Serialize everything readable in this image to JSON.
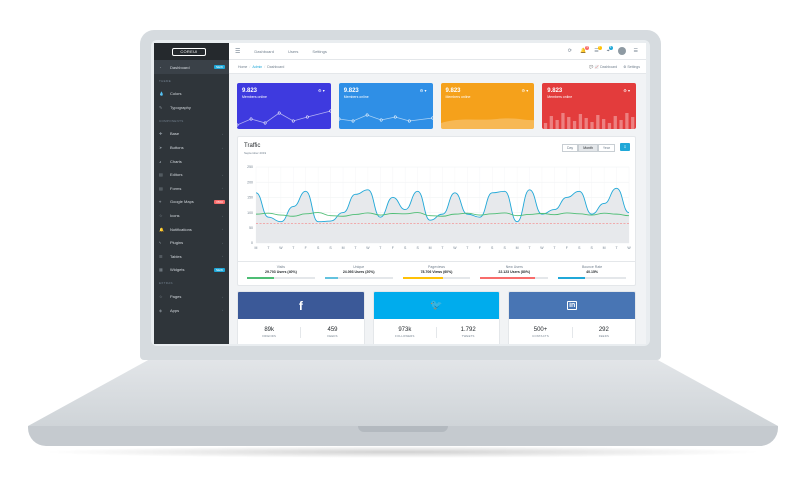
{
  "sidebar": {
    "brand": "COREUI",
    "items": [
      {
        "icon": "speedometer-icon",
        "label": "Dashboard",
        "badge": "NEW",
        "badge_color": "#20a8d8",
        "active": true
      },
      {
        "title": "THEME"
      },
      {
        "icon": "drop-icon",
        "label": "Colors"
      },
      {
        "icon": "pencil-icon",
        "label": "Typography"
      },
      {
        "title": "COMPONENTS"
      },
      {
        "icon": "puzzle-icon",
        "label": "Base",
        "caret": true
      },
      {
        "icon": "cursor-icon",
        "label": "Buttons",
        "caret": true
      },
      {
        "icon": "pie-chart-icon",
        "label": "Charts"
      },
      {
        "icon": "note-icon",
        "label": "Editors",
        "caret": true
      },
      {
        "icon": "note-icon",
        "label": "Forms",
        "caret": true
      },
      {
        "icon": "map-icon",
        "label": "Google Maps",
        "badge": "PRO",
        "badge_color": "#f86c6b"
      },
      {
        "icon": "star-icon",
        "label": "Icons",
        "caret": true
      },
      {
        "icon": "bell-icon",
        "label": "Notifications",
        "caret": true
      },
      {
        "icon": "energy-icon",
        "label": "Plugins",
        "caret": true
      },
      {
        "icon": "list-icon",
        "label": "Tables",
        "caret": true
      },
      {
        "icon": "calculator-icon",
        "label": "Widgets",
        "badge": "NEW",
        "badge_color": "#20a8d8"
      },
      {
        "title": "EXTRAS"
      },
      {
        "icon": "star-icon",
        "label": "Pages",
        "caret": true
      },
      {
        "icon": "layers-icon",
        "label": "Apps",
        "caret": true
      }
    ]
  },
  "topbar": {
    "nav": [
      "Dashboard",
      "Users",
      "Settings"
    ],
    "notif_counts": [
      "5",
      "7",
      "9"
    ]
  },
  "breadcrumb": {
    "items": [
      "Home",
      "Admin",
      "Dashboard"
    ],
    "right": [
      "Dashboard",
      "Settings"
    ]
  },
  "cards": [
    {
      "value": "9.823",
      "label": "Members online",
      "color": "#3e3adf",
      "spark": "line"
    },
    {
      "value": "9.823",
      "label": "Members online",
      "color": "#2f8fe6",
      "spark": "line"
    },
    {
      "value": "9.823",
      "label": "Members online",
      "color": "#f5a11b",
      "spark": "area"
    },
    {
      "value": "9.823",
      "label": "Members online",
      "color": "#e33c3c",
      "spark": "bar"
    }
  ],
  "traffic": {
    "title": "Traffic",
    "subtitle": "September 2019",
    "buttons": [
      "Day",
      "Month",
      "Year"
    ],
    "active_button": "Month"
  },
  "chart_data": {
    "type": "line",
    "ylim": [
      0,
      250
    ],
    "yticks": [
      "250",
      "200",
      "150",
      "100",
      "50",
      "0"
    ],
    "categories": [
      "M",
      "T",
      "W",
      "T",
      "F",
      "S",
      "S",
      "M",
      "T",
      "W",
      "T",
      "F",
      "S",
      "S",
      "M",
      "T",
      "W",
      "T",
      "F",
      "S",
      "S",
      "M",
      "T",
      "W",
      "T",
      "F",
      "S",
      "S",
      "M",
      "T",
      "W"
    ],
    "series": [
      {
        "color": "#20a8d8",
        "fill": "#e7e9ec",
        "values": [
          165,
          85,
          70,
          120,
          170,
          70,
          72,
          100,
          160,
          175,
          85,
          150,
          110,
          170,
          75,
          95,
          165,
          95,
          85,
          165,
          170,
          70,
          175,
          95,
          110,
          150,
          170,
          95,
          130,
          180,
          100
        ]
      },
      {
        "color": "#4dbd74",
        "values": [
          95,
          98,
          92,
          88,
          96,
          100,
          90,
          88,
          94,
          99,
          92,
          97,
          96,
          100,
          90,
          88,
          95,
          98,
          92,
          96,
          99,
          90,
          94,
          97,
          93,
          99,
          96,
          92,
          98,
          95,
          90
        ]
      },
      {
        "color": "#f86c6b",
        "dashed": true,
        "values": [
          65,
          65,
          65,
          65,
          65,
          65,
          65,
          65,
          65,
          65,
          65,
          65,
          65,
          65,
          65,
          65,
          65,
          65,
          65,
          65,
          65,
          65,
          65,
          65,
          65,
          65,
          65,
          65,
          65,
          65,
          65
        ]
      }
    ]
  },
  "stats": [
    {
      "label": "Visits",
      "value": "29.703 Users (40%)",
      "color": "#4dbd74",
      "progress": 0.4
    },
    {
      "label": "Unique",
      "value": "24.093 Users (20%)",
      "color": "#63c2de",
      "progress": 0.2
    },
    {
      "label": "Pageviews",
      "value": "78.706 Views (60%)",
      "color": "#ffc107",
      "progress": 0.6
    },
    {
      "label": "New Users",
      "value": "22.123 Users (80%)",
      "color": "#f86c6b",
      "progress": 0.8
    },
    {
      "label": "Bounce Rate",
      "value": "40.15%",
      "color": "#20a8d8",
      "progress": 0.4
    }
  ],
  "socials": [
    {
      "icon": "facebook-icon",
      "glyph": "f",
      "color": "#3b5998",
      "a_val": "89k",
      "a_lbl": "FRIENDS",
      "b_val": "459",
      "b_lbl": "FEEDS"
    },
    {
      "icon": "twitter-icon",
      "glyph": "🐦",
      "color": "#00aced",
      "a_val": "973k",
      "a_lbl": "FOLLOWERS",
      "b_val": "1.792",
      "b_lbl": "TWEETS"
    },
    {
      "icon": "linkedin-icon",
      "glyph": "in",
      "color": "#4875b4",
      "a_val": "500+",
      "a_lbl": "CONTACTS",
      "b_val": "292",
      "b_lbl": "FEEDS"
    }
  ]
}
